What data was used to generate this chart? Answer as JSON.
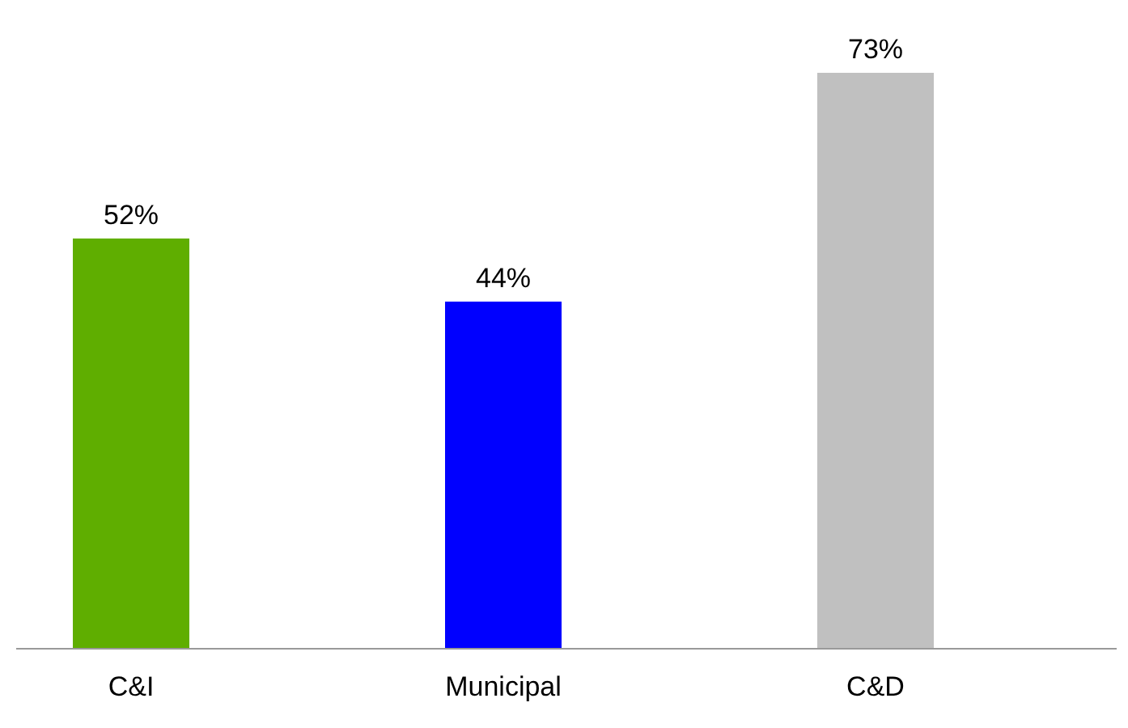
{
  "chart_data": {
    "type": "bar",
    "categories": [
      "C&I",
      "Municipal",
      "C&D"
    ],
    "values": [
      52,
      44,
      73
    ],
    "colors": [
      "#5fae00",
      "#0000ff",
      "#c0c0c0"
    ],
    "data_labels": true,
    "value_labels": [
      "52%",
      "44%",
      "73%"
    ]
  }
}
